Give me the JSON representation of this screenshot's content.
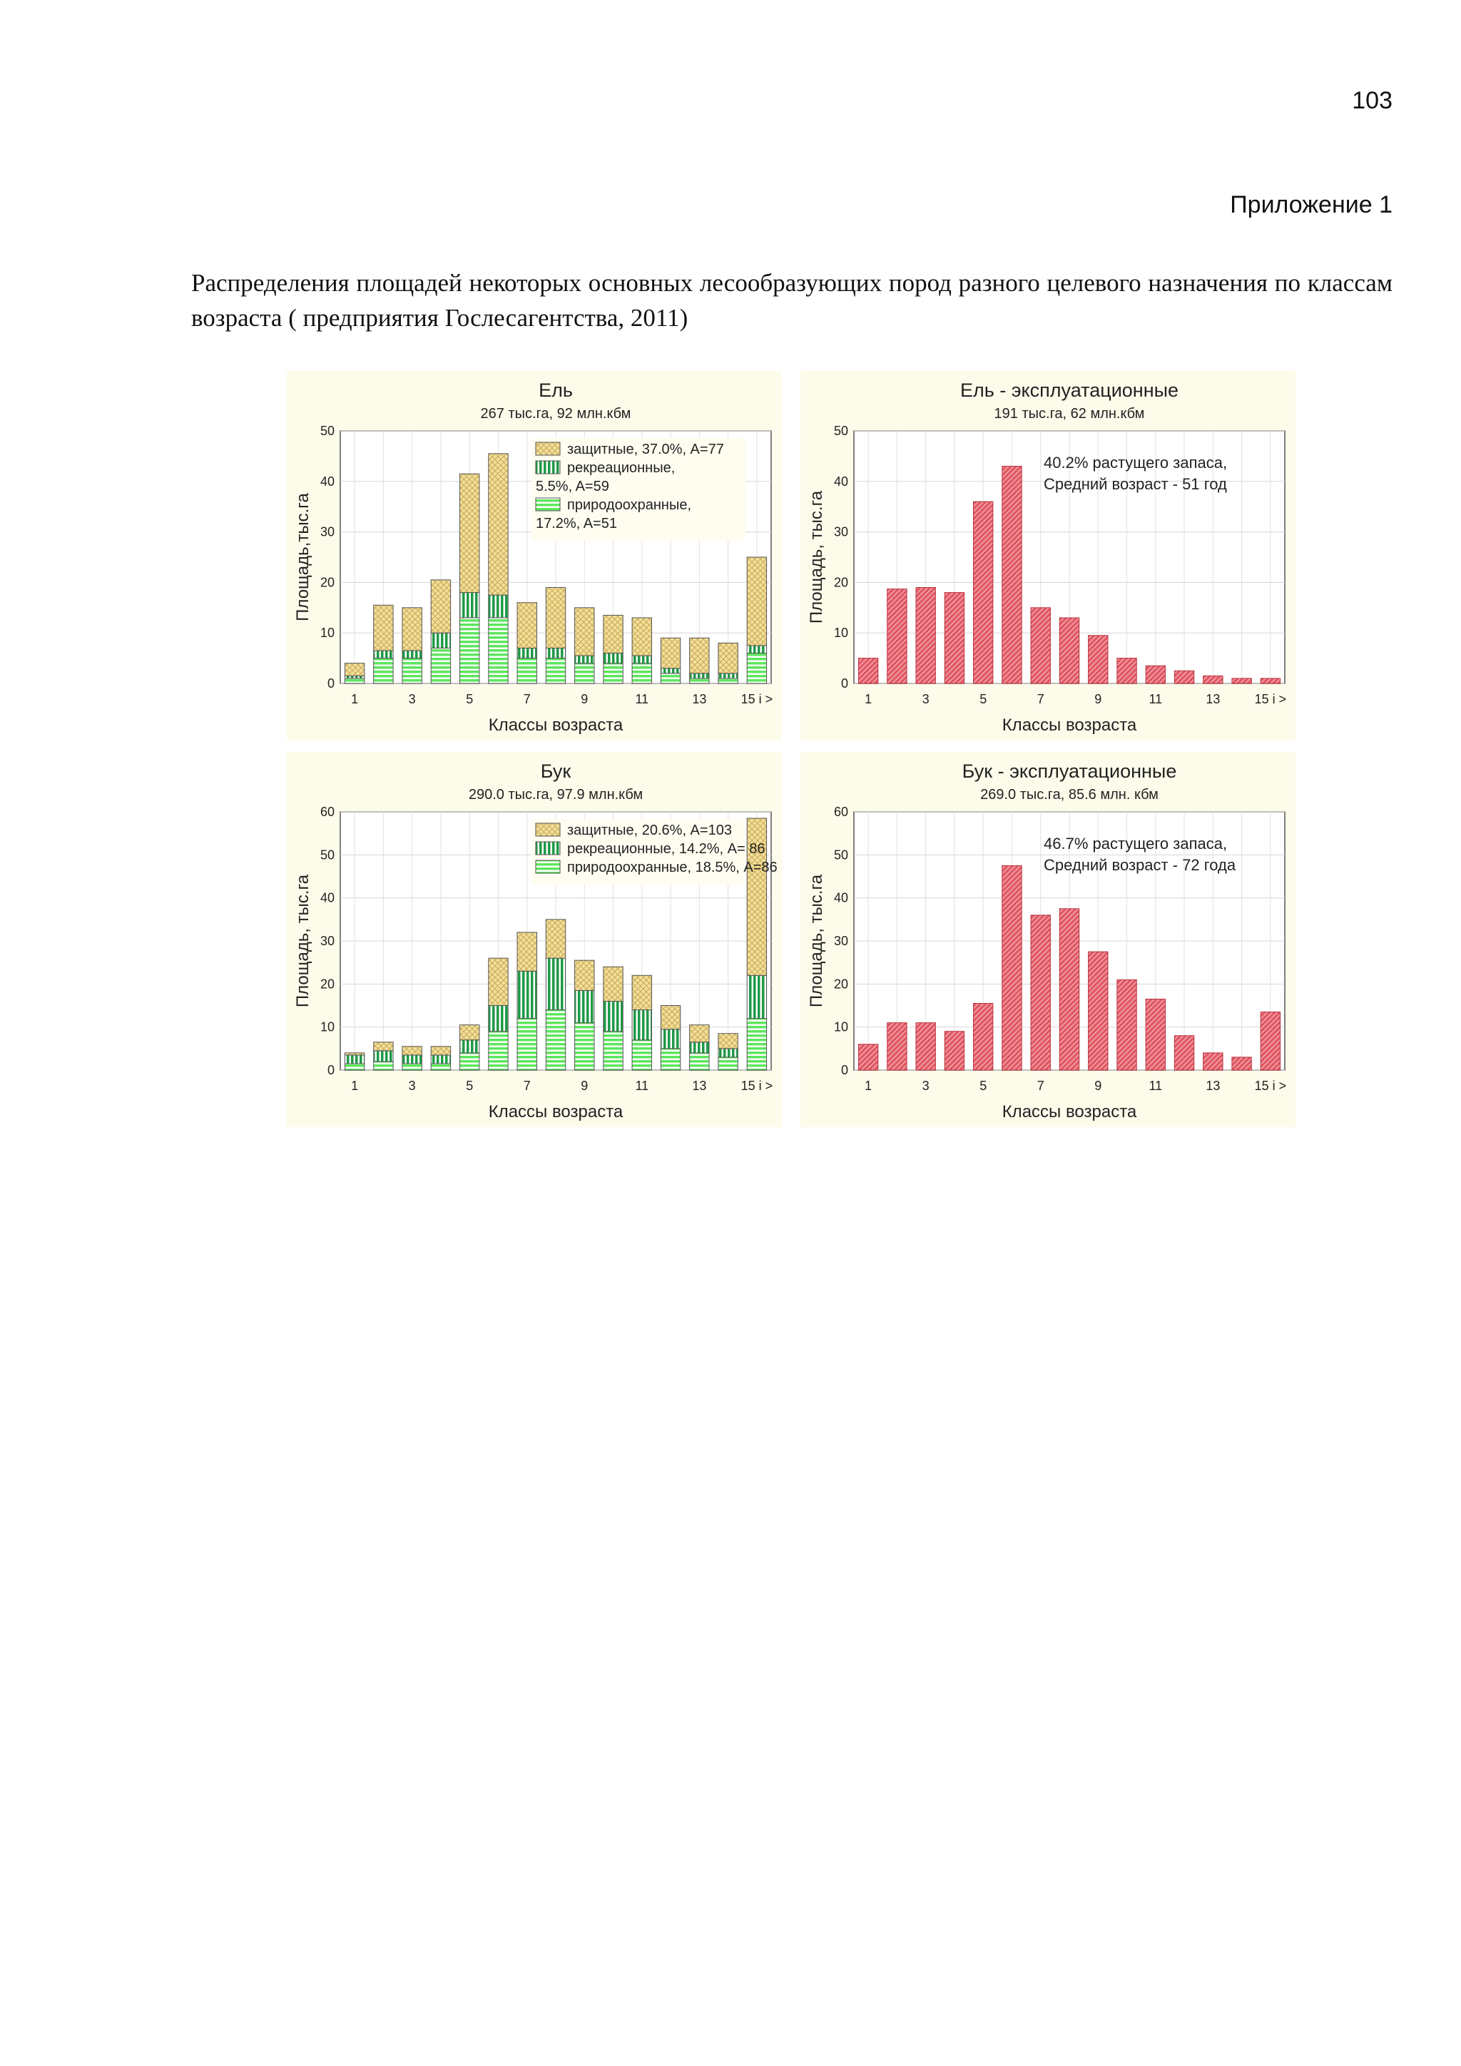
{
  "page_number": "103",
  "appendix_label": "Приложение 1",
  "caption": "Распределения площадей некоторых основных лесообразующих пород  разного целевого назначения по классам возраста ( предприятия  Гослесагентства, 2011)",
  "colors": {
    "panel_bg": "#fdfbea",
    "protective": "#f2df9e",
    "recreation": "#1f9a46",
    "nature": "#5ee65e",
    "exploit": "#e05763"
  },
  "chart_data": [
    {
      "type": "bar",
      "stacked": true,
      "title": "Ель",
      "subtitle": "267 тыс.га, 92 млн.кбм",
      "xlabel": "Классы возраста",
      "ylabel": "Площадь,тыс.га",
      "ylim": [
        0,
        50
      ],
      "yticks": [
        0,
        10,
        20,
        30,
        40,
        50
      ],
      "xtick_labels": [
        "1",
        "3",
        "5",
        "7",
        "9",
        "11",
        "13",
        "15 i >"
      ],
      "legend": [
        "защитные, 37.0%, A=77",
        "рекреационные,",
        "5.5%, A=59",
        "природоохранные,",
        "17.2%, A=51"
      ],
      "series": [
        {
          "name": "природоохранные",
          "values": [
            1,
            5,
            5,
            7,
            13,
            13,
            5,
            5,
            4,
            4,
            4,
            2,
            1,
            1,
            6
          ]
        },
        {
          "name": "рекреационные",
          "values": [
            0.5,
            1.5,
            1.5,
            3,
            5,
            4.5,
            2,
            2,
            1.5,
            2,
            1.5,
            1,
            1,
            1,
            1.5
          ]
        },
        {
          "name": "защитные",
          "values": [
            2.5,
            9,
            8.5,
            10.5,
            23.5,
            28,
            9,
            12,
            9.5,
            7.5,
            7.5,
            6,
            7,
            6,
            17.5
          ]
        }
      ]
    },
    {
      "type": "bar",
      "title": "Ель - эксплуатационные",
      "subtitle": "191 тыс.га, 62 млн.кбм",
      "xlabel": "Классы возраста",
      "ylabel": "Площадь, тыс.га",
      "ylim": [
        0,
        50
      ],
      "yticks": [
        0,
        10,
        20,
        30,
        40,
        50
      ],
      "xtick_labels": [
        "1",
        "3",
        "5",
        "7",
        "9",
        "11",
        "13",
        "15 i >"
      ],
      "annotation": [
        "40.2% растущего запаса,",
        "Средний возраст - 51 год"
      ],
      "series": [
        {
          "name": "эксплуатационные",
          "values": [
            5,
            18.7,
            19,
            18,
            36,
            43,
            15,
            13,
            9.5,
            5,
            3.5,
            2.5,
            1.5,
            1,
            1
          ]
        }
      ]
    },
    {
      "type": "bar",
      "stacked": true,
      "title": "Бук",
      "subtitle": "290.0 тыс.га, 97.9 млн.кбм",
      "xlabel": "Классы возраста",
      "ylabel": "Площадь, тыс.га",
      "ylim": [
        0,
        60
      ],
      "yticks": [
        0,
        10,
        20,
        30,
        40,
        50,
        60
      ],
      "xtick_labels": [
        "1",
        "3",
        "5",
        "7",
        "9",
        "11",
        "13",
        "15 i >"
      ],
      "legend": [
        "защитные, 20.6%, A=103",
        "рекреационные, 14.2%, A= 86",
        "природоохранные, 18.5%, A=86"
      ],
      "series": [
        {
          "name": "природоохранные",
          "values": [
            1.5,
            2,
            1.5,
            1.5,
            4,
            9,
            12,
            14,
            11,
            9,
            7,
            5,
            4,
            3,
            12
          ]
        },
        {
          "name": "рекреационные",
          "values": [
            2,
            2.5,
            2,
            2,
            3,
            6,
            11,
            12,
            7.5,
            7,
            7,
            4.5,
            2.5,
            2,
            10
          ]
        },
        {
          "name": "защитные",
          "values": [
            0.5,
            2,
            2,
            2,
            3.5,
            11,
            9,
            9,
            7,
            8,
            8,
            5.5,
            4,
            3.5,
            36.5
          ]
        }
      ]
    },
    {
      "type": "bar",
      "title": "Бук - эксплуатационные",
      "subtitle": "269.0 тыс.га, 85.6 млн. кбм",
      "xlabel": "Классы возраста",
      "ylabel": "Площадь, тыс.га",
      "ylim": [
        0,
        60
      ],
      "yticks": [
        0,
        10,
        20,
        30,
        40,
        50,
        60
      ],
      "xtick_labels": [
        "1",
        "3",
        "5",
        "7",
        "9",
        "11",
        "13",
        "15 i >"
      ],
      "annotation": [
        "46.7% растущего запаса,",
        "Средний возраст - 72 года"
      ],
      "series": [
        {
          "name": "эксплуатационные",
          "values": [
            6,
            11,
            11,
            9,
            15.5,
            47.5,
            36,
            37.5,
            27.5,
            21,
            16.5,
            8,
            4,
            3,
            13.5
          ]
        }
      ]
    }
  ]
}
